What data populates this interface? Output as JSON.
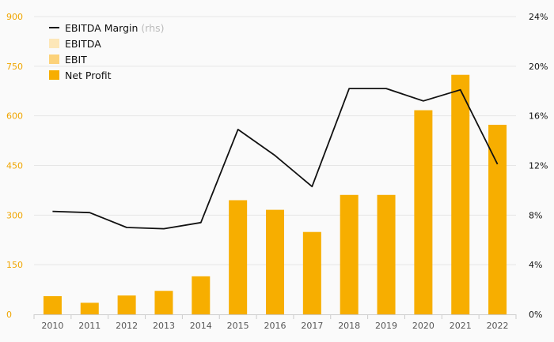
{
  "chart_data": {
    "type": "bar",
    "categories": [
      "2010",
      "2011",
      "2012",
      "2013",
      "2014",
      "2015",
      "2016",
      "2017",
      "2018",
      "2019",
      "2020",
      "2021",
      "2022"
    ],
    "series": [
      {
        "name": "EBITDA",
        "type": "bar",
        "values": [
          null,
          null,
          null,
          null,
          null,
          null,
          null,
          null,
          null,
          null,
          null,
          null,
          null
        ],
        "color": "#fde7b8"
      },
      {
        "name": "EBIT",
        "type": "bar",
        "values": [
          null,
          null,
          null,
          null,
          null,
          null,
          null,
          null,
          null,
          null,
          null,
          null,
          null
        ],
        "color": "#fcd27a"
      },
      {
        "name": "Net Profit",
        "type": "bar",
        "axis": "left",
        "values": [
          55,
          35,
          57,
          71,
          115,
          345,
          316,
          249,
          361,
          361,
          617,
          724,
          573
        ],
        "color": "#f7ae00"
      },
      {
        "name": "EBITDA Margin",
        "name_note": "(rhs)",
        "type": "line",
        "axis": "right",
        "values": [
          8.3,
          8.2,
          7.0,
          6.9,
          7.4,
          14.9,
          12.8,
          10.3,
          18.2,
          18.2,
          17.2,
          18.1,
          12.1
        ],
        "color": "#111111"
      }
    ],
    "y_left": {
      "min": 0,
      "max": 900,
      "ticks": [
        "0",
        "150",
        "300",
        "450",
        "600",
        "750",
        "900"
      ],
      "color": "#f0a500"
    },
    "y_right": {
      "min": 0,
      "max": 24,
      "ticks": [
        "0%",
        "4%",
        "8%",
        "12%",
        "16%",
        "20%",
        "24%"
      ]
    },
    "grid": true,
    "legend": "top-left",
    "title": "",
    "xlabel": "",
    "ylabel": ""
  }
}
